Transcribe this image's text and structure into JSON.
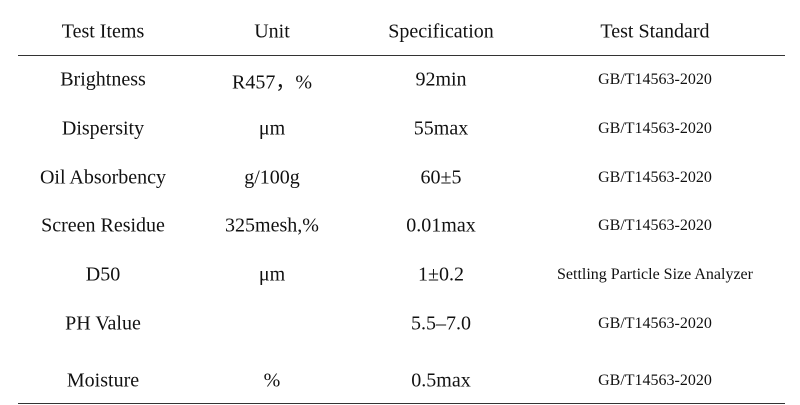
{
  "table": {
    "header": [
      "Test Items",
      "Unit",
      "Specification",
      "Test Standard"
    ],
    "rows": [
      [
        "Brightness",
        "R457，%",
        "92min",
        "GB/T14563-2020"
      ],
      [
        "Dispersity",
        "μm",
        "55max",
        "GB/T14563-2020"
      ],
      [
        "Oil Absorbency",
        "g/100g",
        "60±5",
        "GB/T14563-2020"
      ],
      [
        "Screen Residue",
        "325mesh,%",
        "0.01max",
        "GB/T14563-2020"
      ],
      [
        "D50",
        "μm",
        "1±0.2",
        "Settling Particle Size Analyzer"
      ],
      [
        "PH Value",
        null,
        "5.5–7.0",
        "GB/T14563-2020"
      ],
      [
        "Moisture",
        "%",
        "0.5max",
        "GB/T14563-2020"
      ]
    ]
  }
}
